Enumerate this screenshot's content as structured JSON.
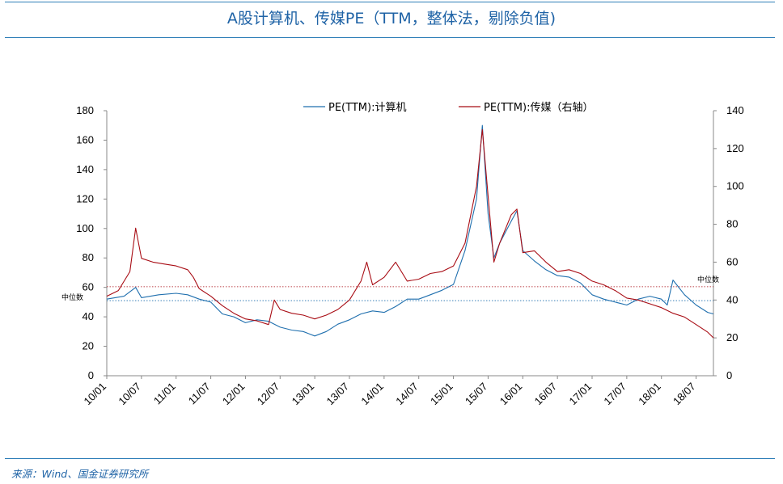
{
  "header": {
    "title": "A股计算机、传媒PE（TTM，整体法，剔除负值)"
  },
  "footer": {
    "source": "来源：Wind、国金证券研究所"
  },
  "colors": {
    "computer": "#1f6fae",
    "media": "#a80c14",
    "rule": "#2f7fb8",
    "title": "#1f63a6"
  },
  "chart_data": {
    "type": "line",
    "title": "A股计算机、传媒PE（TTM，整体法，剔除负值)",
    "x_tick_labels": [
      "10/01",
      "10/07",
      "11/01",
      "11/07",
      "12/01",
      "12/07",
      "13/01",
      "13/07",
      "14/01",
      "14/07",
      "15/01",
      "15/07",
      "16/01",
      "16/07",
      "17/01",
      "17/07",
      "18/01",
      "18/07"
    ],
    "x_range": [
      "2010-01",
      "2018-10"
    ],
    "y_left": {
      "ticks": [
        0,
        20,
        40,
        60,
        80,
        100,
        120,
        140,
        160,
        180
      ],
      "range": [
        0,
        180
      ]
    },
    "y_right": {
      "ticks": [
        0,
        20,
        40,
        60,
        80,
        100,
        120,
        140
      ],
      "range": [
        0,
        140
      ]
    },
    "legend": [
      "PE(TTM):计算机",
      "PE(TTM):传媒（右轴）"
    ],
    "legend_position": "top",
    "median_label": "中位数",
    "series": [
      {
        "name": "PE(TTM):计算机",
        "axis": "left",
        "median": 51,
        "points": [
          [
            "2010-01",
            52
          ],
          [
            "2010-04",
            54
          ],
          [
            "2010-06",
            60
          ],
          [
            "2010-07",
            53
          ],
          [
            "2010-10",
            55
          ],
          [
            "2011-01",
            56
          ],
          [
            "2011-03",
            55
          ],
          [
            "2011-05",
            52
          ],
          [
            "2011-07",
            50
          ],
          [
            "2011-09",
            42
          ],
          [
            "2011-11",
            40
          ],
          [
            "2012-01",
            36
          ],
          [
            "2012-03",
            38
          ],
          [
            "2012-05",
            37
          ],
          [
            "2012-07",
            33
          ],
          [
            "2012-09",
            31
          ],
          [
            "2012-11",
            30
          ],
          [
            "2013-01",
            27
          ],
          [
            "2013-03",
            30
          ],
          [
            "2013-05",
            35
          ],
          [
            "2013-07",
            38
          ],
          [
            "2013-09",
            42
          ],
          [
            "2013-11",
            44
          ],
          [
            "2014-01",
            43
          ],
          [
            "2014-03",
            47
          ],
          [
            "2014-05",
            52
          ],
          [
            "2014-07",
            52
          ],
          [
            "2014-09",
            55
          ],
          [
            "2014-11",
            58
          ],
          [
            "2015-01",
            62
          ],
          [
            "2015-03",
            85
          ],
          [
            "2015-05",
            120
          ],
          [
            "2015-06",
            170
          ],
          [
            "2015-07",
            110
          ],
          [
            "2015-08",
            80
          ],
          [
            "2015-09",
            90
          ],
          [
            "2015-11",
            105
          ],
          [
            "2015-12",
            112
          ],
          [
            "2016-01",
            85
          ],
          [
            "2016-03",
            78
          ],
          [
            "2016-05",
            72
          ],
          [
            "2016-07",
            68
          ],
          [
            "2016-09",
            67
          ],
          [
            "2016-11",
            63
          ],
          [
            "2017-01",
            55
          ],
          [
            "2017-03",
            52
          ],
          [
            "2017-05",
            50
          ],
          [
            "2017-07",
            48
          ],
          [
            "2017-09",
            52
          ],
          [
            "2017-11",
            54
          ],
          [
            "2018-01",
            52
          ],
          [
            "2018-02",
            48
          ],
          [
            "2018-03",
            65
          ],
          [
            "2018-05",
            55
          ],
          [
            "2018-07",
            48
          ],
          [
            "2018-09",
            43
          ],
          [
            "2018-10",
            42
          ]
        ]
      },
      {
        "name": "PE(TTM):传媒（右轴）",
        "axis": "right",
        "median": 47,
        "points": [
          [
            "2010-01",
            42
          ],
          [
            "2010-03",
            45
          ],
          [
            "2010-05",
            55
          ],
          [
            "2010-06",
            78
          ],
          [
            "2010-07",
            62
          ],
          [
            "2010-09",
            60
          ],
          [
            "2010-11",
            59
          ],
          [
            "2011-01",
            58
          ],
          [
            "2011-03",
            56
          ],
          [
            "2011-04",
            52
          ],
          [
            "2011-05",
            46
          ],
          [
            "2011-07",
            42
          ],
          [
            "2011-09",
            37
          ],
          [
            "2011-11",
            33
          ],
          [
            "2012-01",
            30
          ],
          [
            "2012-03",
            29
          ],
          [
            "2012-05",
            27
          ],
          [
            "2012-06",
            40
          ],
          [
            "2012-07",
            35
          ],
          [
            "2012-09",
            33
          ],
          [
            "2012-11",
            32
          ],
          [
            "2013-01",
            30
          ],
          [
            "2013-03",
            32
          ],
          [
            "2013-05",
            35
          ],
          [
            "2013-07",
            40
          ],
          [
            "2013-09",
            50
          ],
          [
            "2013-10",
            60
          ],
          [
            "2013-11",
            48
          ],
          [
            "2014-01",
            52
          ],
          [
            "2014-03",
            60
          ],
          [
            "2014-05",
            50
          ],
          [
            "2014-07",
            51
          ],
          [
            "2014-09",
            54
          ],
          [
            "2014-11",
            55
          ],
          [
            "2015-01",
            58
          ],
          [
            "2015-03",
            70
          ],
          [
            "2015-05",
            100
          ],
          [
            "2015-06",
            130
          ],
          [
            "2015-07",
            95
          ],
          [
            "2015-08",
            60
          ],
          [
            "2015-09",
            70
          ],
          [
            "2015-11",
            85
          ],
          [
            "2015-12",
            88
          ],
          [
            "2016-01",
            65
          ],
          [
            "2016-03",
            66
          ],
          [
            "2016-05",
            60
          ],
          [
            "2016-07",
            55
          ],
          [
            "2016-09",
            56
          ],
          [
            "2016-11",
            54
          ],
          [
            "2017-01",
            50
          ],
          [
            "2017-03",
            48
          ],
          [
            "2017-05",
            45
          ],
          [
            "2017-07",
            41
          ],
          [
            "2017-09",
            40
          ],
          [
            "2017-11",
            38
          ],
          [
            "2018-01",
            36
          ],
          [
            "2018-03",
            33
          ],
          [
            "2018-05",
            31
          ],
          [
            "2018-07",
            27
          ],
          [
            "2018-09",
            23
          ],
          [
            "2018-10",
            20
          ]
        ]
      }
    ]
  }
}
